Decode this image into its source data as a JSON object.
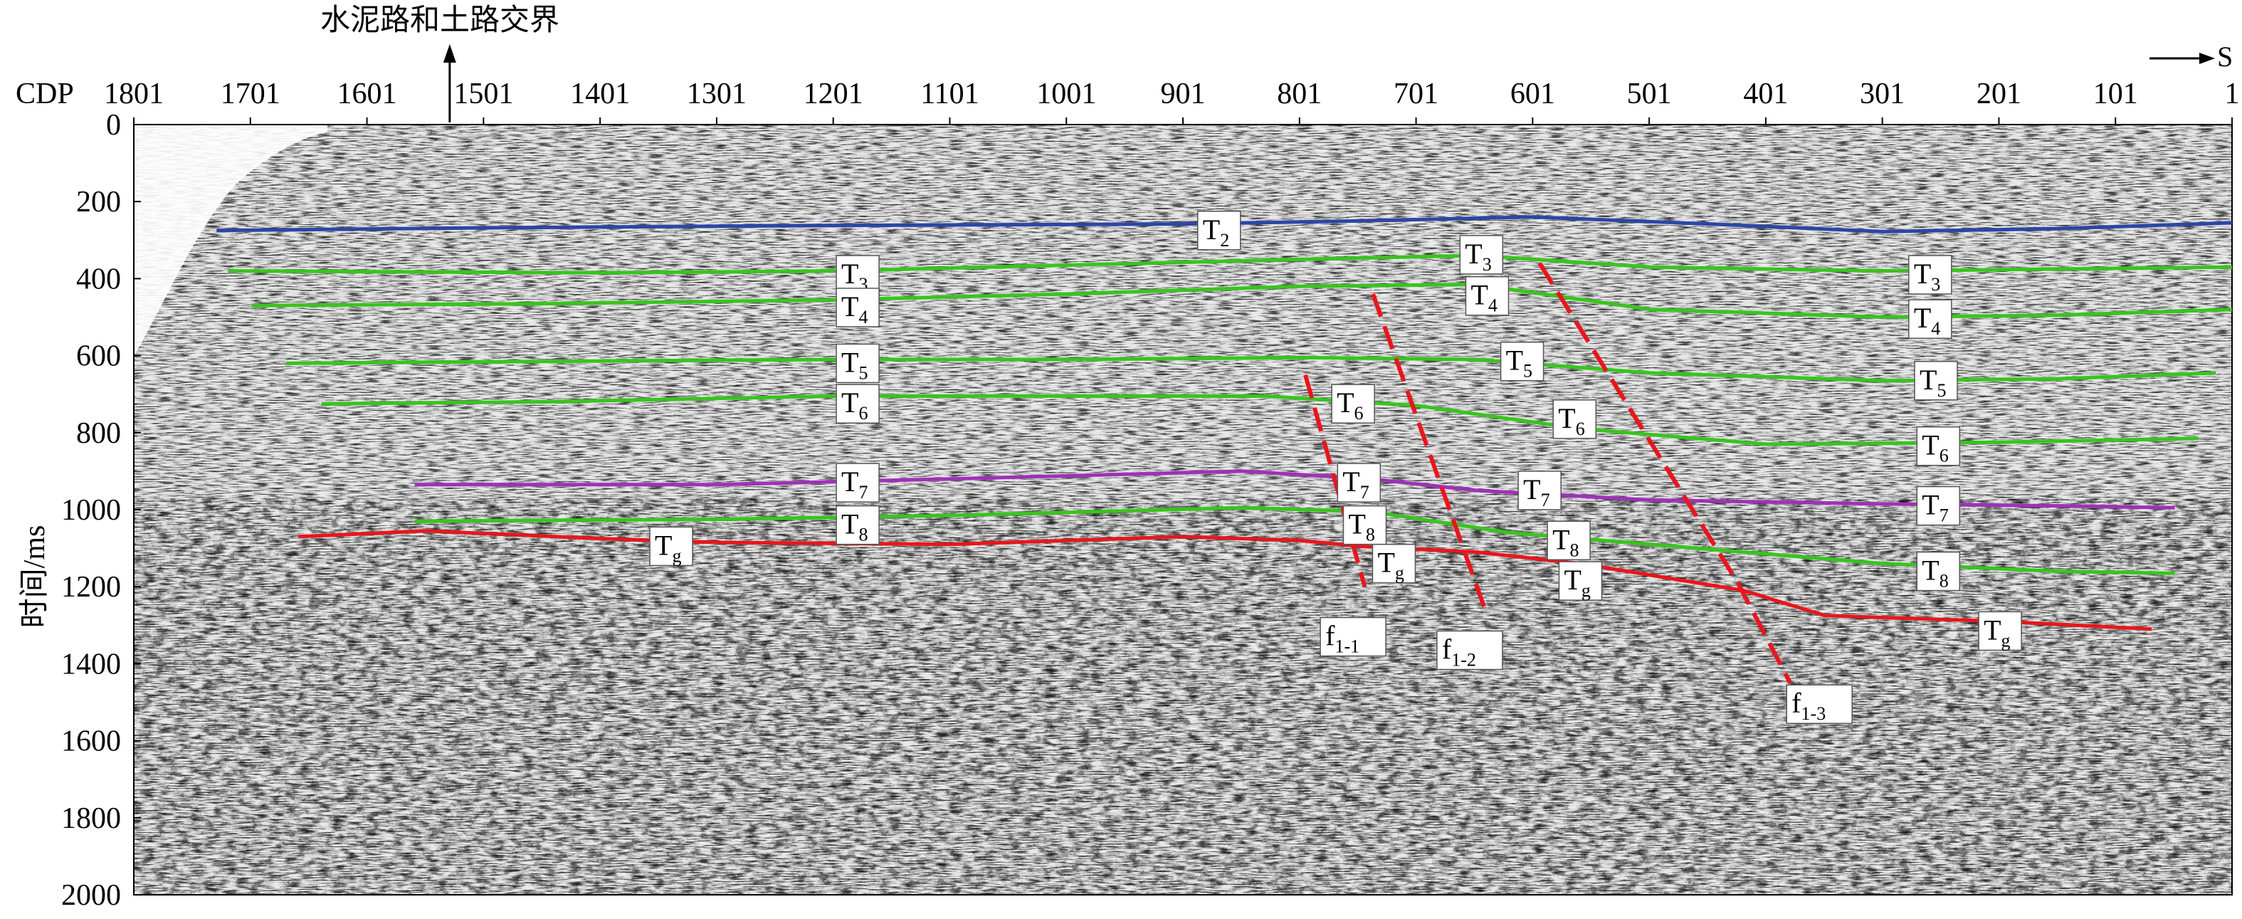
{
  "chart_data": {
    "type": "line",
    "xlabel": "CDP",
    "ylabel": "时间/ms",
    "x_range": [
      1801,
      1
    ],
    "ylim": [
      0,
      2000
    ],
    "x_ticks": [
      "1801",
      "1701",
      "1601",
      "1501",
      "1401",
      "1301",
      "1201",
      "1101",
      "1001",
      "901",
      "801",
      "701",
      "601",
      "501",
      "401",
      "301",
      "201",
      "101",
      "1"
    ],
    "y_ticks": [
      "0",
      "200",
      "400",
      "600",
      "800",
      "1000",
      "1200",
      "1400",
      "1600",
      "1800",
      "2000"
    ],
    "top_annotation": "水泥路和土路交界",
    "top_annotation_cdp": 1530,
    "direction_label": "S",
    "colors": {
      "T2": "#2b45a8",
      "T3": "#38c41e",
      "T4": "#38c41e",
      "T5": "#38c41e",
      "T6": "#38c41e",
      "T7": "#a030b8",
      "T8": "#38c41e",
      "Tg": "#e8161c",
      "fault": "#e8161c"
    },
    "horizons": [
      {
        "name": "T2",
        "base": "T",
        "sub": "2",
        "color": "T2",
        "points": [
          [
            1730,
            275
          ],
          [
            1500,
            268
          ],
          [
            1200,
            262
          ],
          [
            900,
            258
          ],
          [
            750,
            250
          ],
          [
            600,
            240
          ],
          [
            450,
            258
          ],
          [
            300,
            278
          ],
          [
            150,
            270
          ],
          [
            1,
            255
          ]
        ],
        "labels": [
          {
            "cdp": 870,
            "t": 275
          }
        ]
      },
      {
        "name": "T3",
        "base": "T",
        "sub": "3",
        "color": "T3",
        "points": [
          [
            1720,
            380
          ],
          [
            1400,
            385
          ],
          [
            1200,
            380
          ],
          [
            1000,
            365
          ],
          [
            800,
            350
          ],
          [
            650,
            340
          ],
          [
            500,
            370
          ],
          [
            300,
            380
          ],
          [
            150,
            375
          ],
          [
            1,
            370
          ]
        ],
        "labels": [
          {
            "cdp": 1180,
            "t": 390
          },
          {
            "cdp": 645,
            "t": 338
          },
          {
            "cdp": 260,
            "t": 390
          }
        ]
      },
      {
        "name": "T4",
        "base": "T",
        "sub": "4",
        "color": "T4",
        "points": [
          [
            1700,
            470
          ],
          [
            1450,
            465
          ],
          [
            1200,
            455
          ],
          [
            1000,
            440
          ],
          [
            800,
            420
          ],
          [
            650,
            415
          ],
          [
            500,
            480
          ],
          [
            300,
            500
          ],
          [
            150,
            495
          ],
          [
            1,
            480
          ]
        ],
        "labels": [
          {
            "cdp": 1180,
            "t": 475
          },
          {
            "cdp": 640,
            "t": 445
          },
          {
            "cdp": 260,
            "t": 505
          }
        ]
      },
      {
        "name": "T5",
        "base": "T",
        "sub": "5",
        "color": "T5",
        "points": [
          [
            1670,
            620
          ],
          [
            1450,
            615
          ],
          [
            1200,
            610
          ],
          [
            1000,
            610
          ],
          [
            800,
            605
          ],
          [
            650,
            610
          ],
          [
            500,
            645
          ],
          [
            300,
            665
          ],
          [
            150,
            660
          ],
          [
            15,
            645
          ]
        ],
        "labels": [
          {
            "cdp": 1180,
            "t": 620
          },
          {
            "cdp": 610,
            "t": 615
          },
          {
            "cdp": 255,
            "t": 665
          }
        ]
      },
      {
        "name": "T6",
        "base": "T",
        "sub": "6",
        "color": "T6",
        "points": [
          [
            1640,
            725
          ],
          [
            1450,
            720
          ],
          [
            1200,
            705
          ],
          [
            1000,
            705
          ],
          [
            830,
            705
          ],
          [
            700,
            730
          ],
          [
            560,
            790
          ],
          [
            400,
            830
          ],
          [
            200,
            825
          ],
          [
            30,
            815
          ]
        ],
        "labels": [
          {
            "cdp": 1180,
            "t": 725
          },
          {
            "cdp": 755,
            "t": 725
          },
          {
            "cdp": 565,
            "t": 765
          },
          {
            "cdp": 253,
            "t": 835
          }
        ]
      },
      {
        "name": "T7",
        "base": "T",
        "sub": "7",
        "color": "T7",
        "points": [
          [
            1560,
            935
          ],
          [
            1300,
            935
          ],
          [
            1100,
            920
          ],
          [
            850,
            900
          ],
          [
            740,
            920
          ],
          [
            650,
            950
          ],
          [
            500,
            975
          ],
          [
            300,
            985
          ],
          [
            150,
            990
          ],
          [
            50,
            995
          ]
        ],
        "labels": [
          {
            "cdp": 1180,
            "t": 930
          },
          {
            "cdp": 750,
            "t": 930
          },
          {
            "cdp": 595,
            "t": 950
          },
          {
            "cdp": 253,
            "t": 990
          }
        ]
      },
      {
        "name": "T8",
        "base": "T",
        "sub": "8",
        "color": "T8",
        "points": [
          [
            1560,
            1030
          ],
          [
            1300,
            1025
          ],
          [
            1100,
            1015
          ],
          [
            850,
            995
          ],
          [
            740,
            1005
          ],
          [
            620,
            1060
          ],
          [
            500,
            1090
          ],
          [
            300,
            1140
          ],
          [
            150,
            1160
          ],
          [
            50,
            1165
          ]
        ],
        "labels": [
          {
            "cdp": 1180,
            "t": 1040
          },
          {
            "cdp": 745,
            "t": 1040
          },
          {
            "cdp": 570,
            "t": 1080
          },
          {
            "cdp": 253,
            "t": 1160
          }
        ]
      },
      {
        "name": "Tg",
        "base": "T",
        "sub": "g",
        "color": "Tg",
        "points": [
          [
            1660,
            1070
          ],
          [
            1550,
            1055
          ],
          [
            1400,
            1075
          ],
          [
            1300,
            1085
          ],
          [
            1100,
            1090
          ],
          [
            900,
            1070
          ],
          [
            800,
            1080
          ],
          [
            750,
            1095
          ],
          [
            650,
            1110
          ],
          [
            560,
            1140
          ],
          [
            420,
            1210
          ],
          [
            350,
            1275
          ],
          [
            200,
            1290
          ],
          [
            70,
            1310
          ]
        ],
        "labels": [
          {
            "cdp": 1340,
            "t": 1095
          },
          {
            "cdp": 720,
            "t": 1140
          },
          {
            "cdp": 560,
            "t": 1185
          },
          {
            "cdp": 200,
            "t": 1315
          }
        ]
      }
    ],
    "faults": [
      {
        "name": "f1-1",
        "base": "f",
        "sub": "1-1",
        "points": [
          [
            796,
            650
          ],
          [
            745,
            1200
          ]
        ],
        "label": {
          "cdp": 755,
          "t": 1330
        }
      },
      {
        "name": "f1-2",
        "base": "f",
        "sub": "1-2",
        "points": [
          [
            738,
            440
          ],
          [
            640,
            1275
          ]
        ],
        "label": {
          "cdp": 655,
          "t": 1365
        }
      },
      {
        "name": "f1-3",
        "base": "f",
        "sub": "1-3",
        "points": [
          [
            595,
            360
          ],
          [
            425,
            1190
          ],
          [
            380,
            1450
          ]
        ],
        "label": {
          "cdp": 355,
          "t": 1505
        }
      }
    ]
  }
}
